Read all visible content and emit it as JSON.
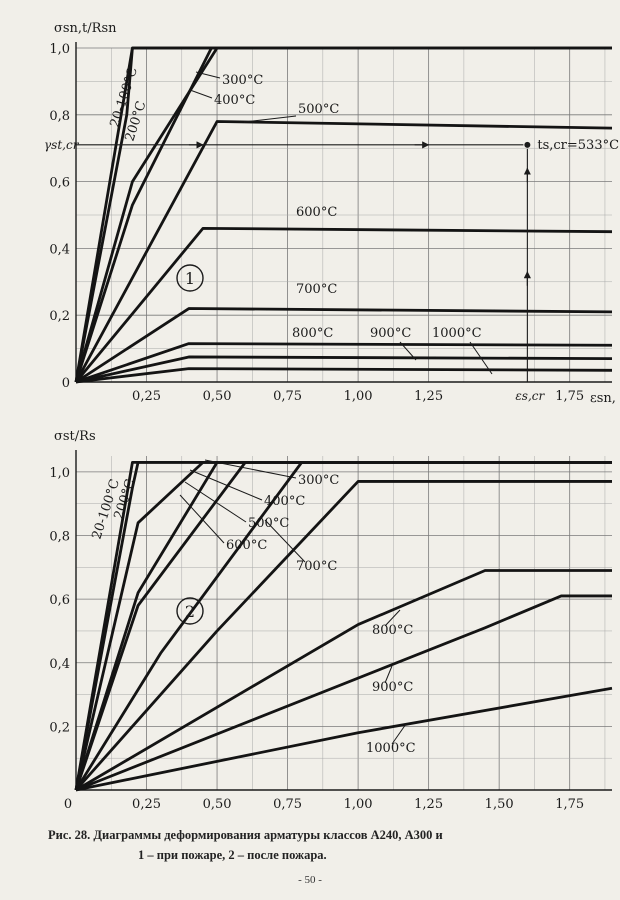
{
  "caption": {
    "line1": "Рис. 28.      Диаграммы  деформирования  арматуры классов  А240,  А300  и",
    "line2": "1 – при  пожаре,       2 – после пожара."
  },
  "page_number": "- 50 -",
  "chart_data": [
    {
      "type": "line",
      "panel_label": "1",
      "ylabel": "σsn,t/Rsn",
      "xlabel": "εsn,",
      "xlim": [
        0,
        1.9
      ],
      "ylim": [
        0,
        1.0
      ],
      "x_ticks": [
        "0,25",
        "0,50",
        "0,75",
        "1,00",
        "1,25",
        "1,75"
      ],
      "x_tick_values": [
        0.25,
        0.5,
        0.75,
        1.0,
        1.25,
        1.75
      ],
      "y_ticks": [
        "0",
        "0,2",
        "0,4",
        "0,6",
        "0,8",
        "1,0"
      ],
      "y_tick_values": [
        0,
        0.2,
        0.4,
        0.6,
        0.8,
        1.0
      ],
      "grid": true,
      "extra_y_label": "γst,cr",
      "extra_y_value": 0.71,
      "extra_x_label": "εs,cr",
      "extra_x_value": 1.6,
      "point_label": "ts,cr=533°C",
      "series": [
        {
          "name": "20-100°C",
          "x": [
            0,
            0.2,
            1.9
          ],
          "y": [
            0,
            1.0,
            1.0
          ]
        },
        {
          "name": "200°C",
          "x": [
            0,
            0.18,
            0.2,
            1.9
          ],
          "y": [
            0,
            0.8,
            1.0,
            1.0
          ]
        },
        {
          "name": "300°C",
          "x": [
            0,
            0.2,
            0.5
          ],
          "y": [
            0,
            0.6,
            1.0
          ]
        },
        {
          "name": "400°C",
          "x": [
            0,
            0.2,
            0.48
          ],
          "y": [
            0,
            0.53,
            1.0
          ]
        },
        {
          "name": "500°C",
          "x": [
            0,
            0.5,
            1.9
          ],
          "y": [
            0,
            0.78,
            0.76
          ]
        },
        {
          "name": "600°C",
          "x": [
            0,
            0.45,
            1.9
          ],
          "y": [
            0,
            0.46,
            0.45
          ]
        },
        {
          "name": "700°C",
          "x": [
            0,
            0.4,
            1.9
          ],
          "y": [
            0,
            0.22,
            0.21
          ]
        },
        {
          "name": "800°C",
          "x": [
            0,
            0.4,
            1.9
          ],
          "y": [
            0,
            0.115,
            0.11
          ]
        },
        {
          "name": "900°C",
          "x": [
            0,
            0.4,
            1.9
          ],
          "y": [
            0,
            0.075,
            0.07
          ]
        },
        {
          "name": "1000°C",
          "x": [
            0,
            0.4,
            1.9
          ],
          "y": [
            0,
            0.04,
            0.035
          ]
        }
      ]
    },
    {
      "type": "line",
      "panel_label": "2",
      "ylabel": "σst/Rs",
      "xlabel": "",
      "xlim": [
        0,
        1.9
      ],
      "ylim": [
        0,
        1.05
      ],
      "x_ticks": [
        "0",
        "0,25",
        "0,50",
        "0,75",
        "1,00",
        "1,25",
        "1,50",
        "1,75"
      ],
      "x_tick_values": [
        0,
        0.25,
        0.5,
        0.75,
        1.0,
        1.25,
        1.5,
        1.75
      ],
      "y_ticks": [
        "0,2",
        "0,4",
        "0,6",
        "0,8",
        "1,0"
      ],
      "y_tick_values": [
        0.2,
        0.4,
        0.6,
        0.8,
        1.0
      ],
      "grid": true,
      "series": [
        {
          "name": "20-100°C",
          "x": [
            0,
            0.2,
            1.9
          ],
          "y": [
            0,
            1.03,
            1.03
          ]
        },
        {
          "name": "200°C",
          "x": [
            0,
            0.2,
            0.22,
            1.9
          ],
          "y": [
            0,
            0.95,
            1.03,
            1.03
          ]
        },
        {
          "name": "300°C",
          "x": [
            0,
            0.22,
            0.45,
            1.9
          ],
          "y": [
            0,
            0.84,
            1.03,
            1.03
          ]
        },
        {
          "name": "400°C",
          "x": [
            0,
            0.22,
            0.5,
            1.9
          ],
          "y": [
            0,
            0.62,
            1.03,
            1.03
          ]
        },
        {
          "name": "500°C",
          "x": [
            0,
            0.22,
            0.6,
            1.9
          ],
          "y": [
            0,
            0.58,
            1.03,
            1.03
          ]
        },
        {
          "name": "600°C",
          "x": [
            0,
            0.3,
            0.8,
            1.9
          ],
          "y": [
            0,
            0.43,
            1.03,
            1.03
          ]
        },
        {
          "name": "700°C",
          "x": [
            0,
            0.5,
            1.0,
            1.9
          ],
          "y": [
            0,
            0.5,
            0.97,
            0.97
          ]
        },
        {
          "name": "800°C",
          "x": [
            0,
            1.0,
            1.45,
            1.9
          ],
          "y": [
            0,
            0.52,
            0.69,
            0.69
          ]
        },
        {
          "name": "900°C",
          "x": [
            0,
            1.45,
            1.72,
            1.9
          ],
          "y": [
            0,
            0.51,
            0.61,
            0.61
          ]
        },
        {
          "name": "1000°C",
          "x": [
            0,
            1.0,
            1.9
          ],
          "y": [
            0,
            0.18,
            0.32
          ]
        }
      ]
    }
  ]
}
